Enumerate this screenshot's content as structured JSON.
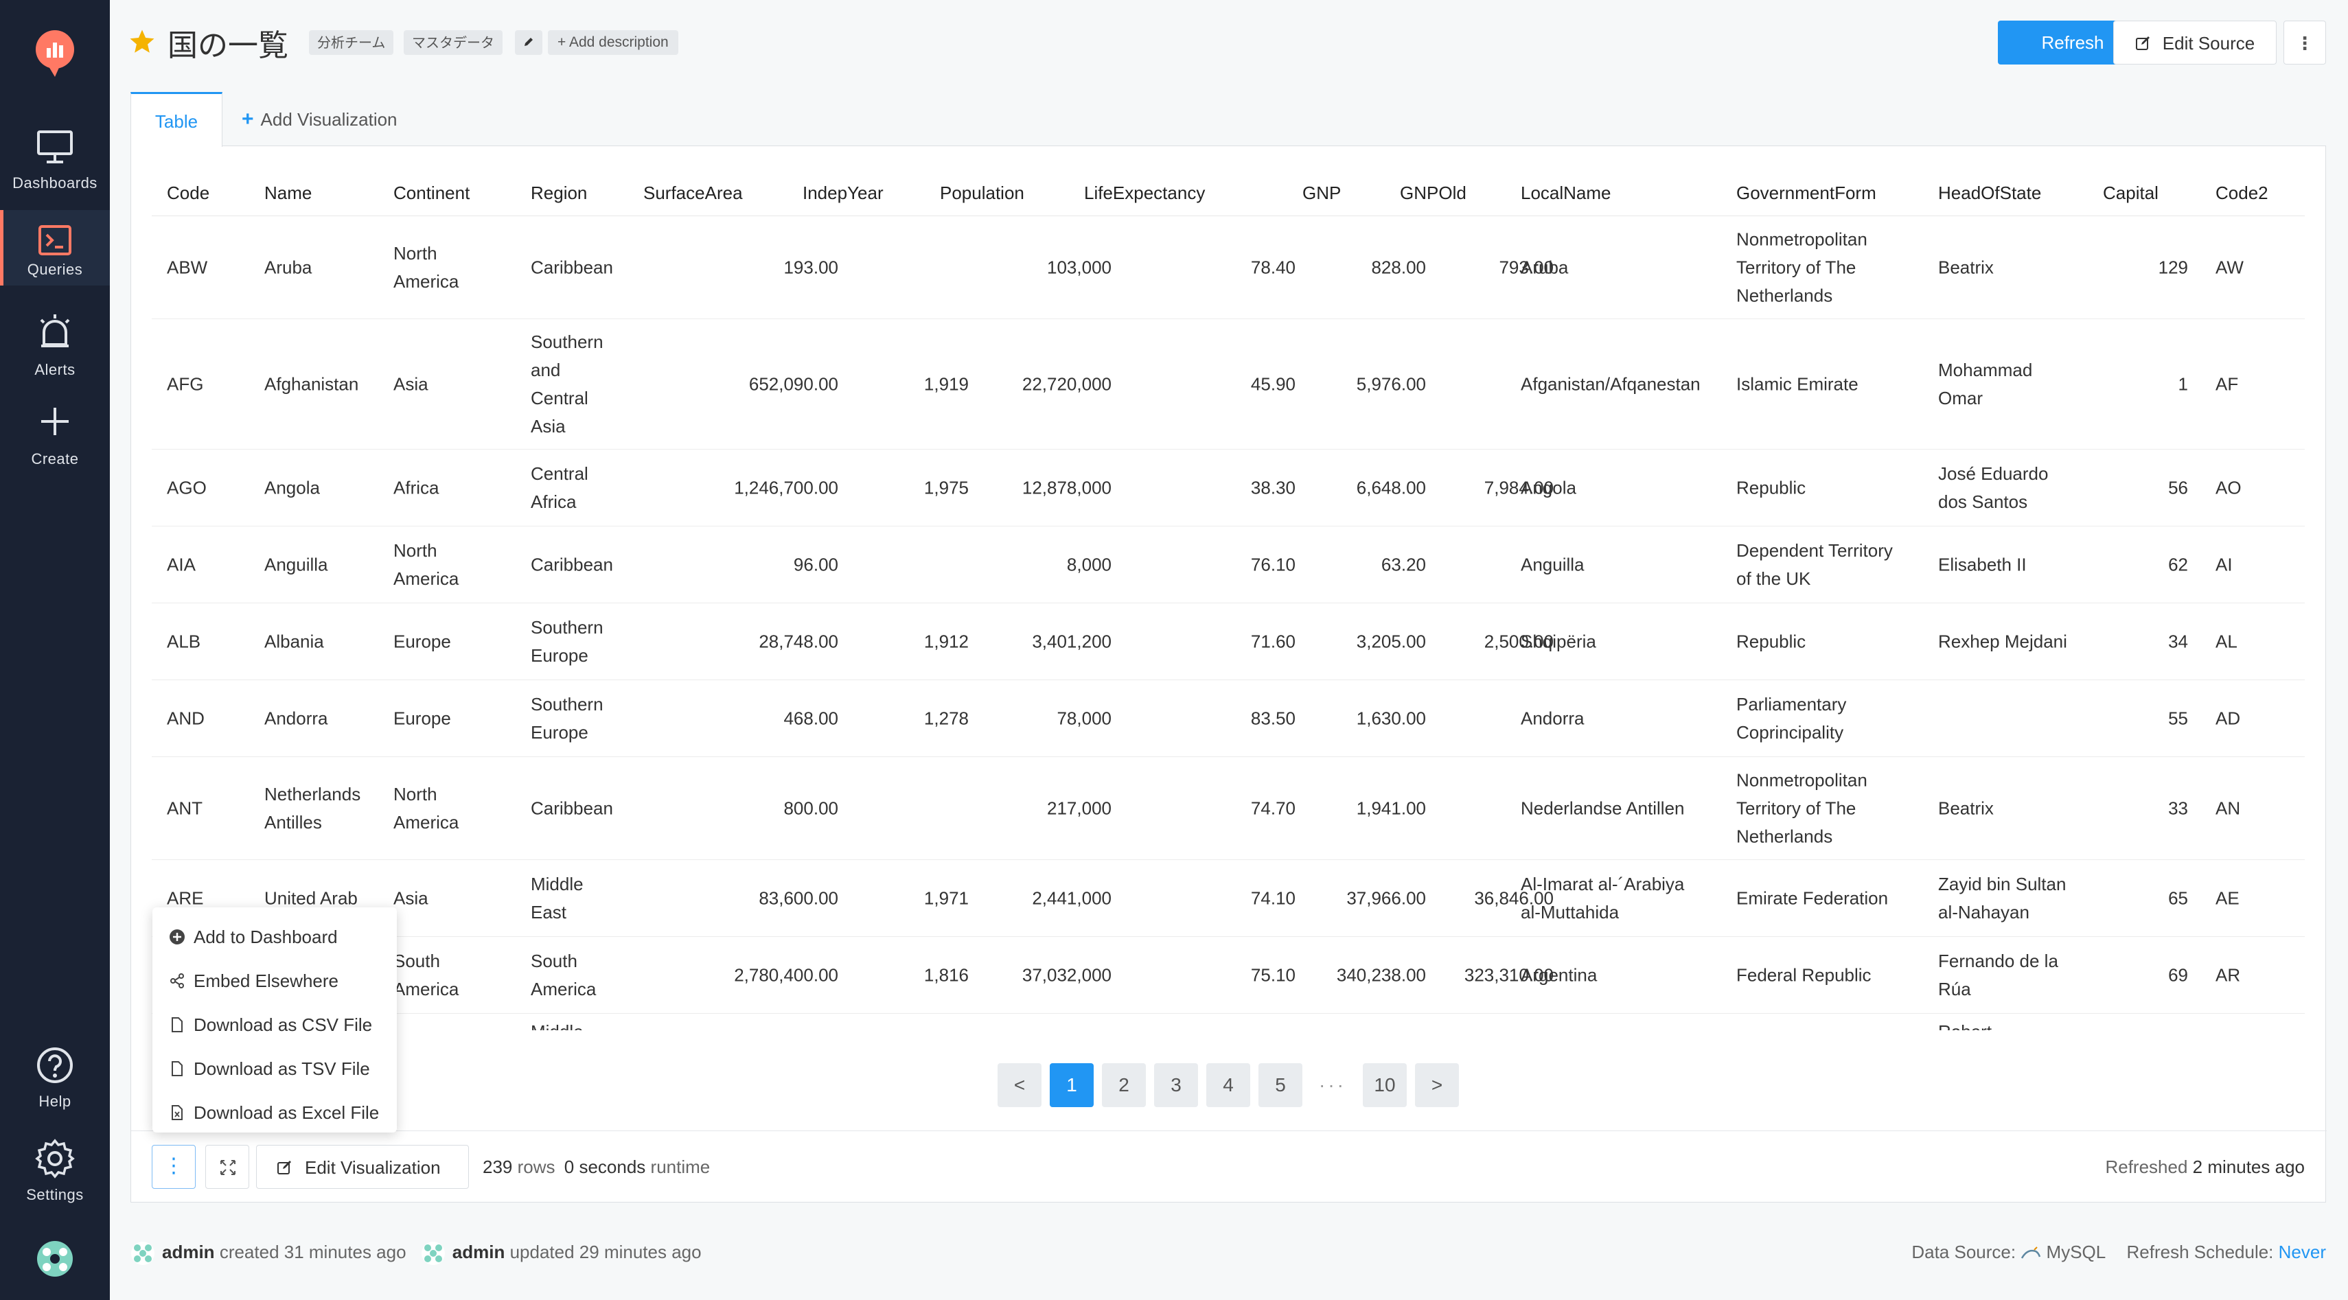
{
  "sidebar": {
    "items": [
      {
        "label": "Dashboards",
        "icon": "monitor-icon"
      },
      {
        "label": "Queries",
        "icon": "terminal-icon"
      },
      {
        "label": "Alerts",
        "icon": "alarm-icon"
      },
      {
        "label": "Create",
        "icon": "plus-icon"
      },
      {
        "label": "Help",
        "icon": "help-icon"
      },
      {
        "label": "Settings",
        "icon": "gear-icon"
      }
    ]
  },
  "header": {
    "title": "国の一覧",
    "tags": [
      "分析チーム",
      "マスタデータ"
    ],
    "add_description": "+ Add description",
    "refresh_label": "Refresh",
    "edit_source_label": "Edit Source",
    "more_label": "⋮"
  },
  "tabs": {
    "table_label": "Table",
    "add_visualization_label": "Add Visualization"
  },
  "table": {
    "columns": [
      "Code",
      "Name",
      "Continent",
      "Region",
      "SurfaceArea",
      "IndepYear",
      "Population",
      "LifeExpectancy",
      "GNP",
      "GNPOld",
      "LocalName",
      "GovernmentForm",
      "HeadOfState",
      "Capital",
      "Code2"
    ],
    "rows": [
      {
        "code": "ABW",
        "name": "Aruba",
        "continent": "North\nAmerica",
        "region": "Caribbean",
        "surface": "193.00",
        "indep": "",
        "pop": "103,000",
        "life": "78.40",
        "gnp": "828.00",
        "gnpold": "793.00",
        "local": "Aruba",
        "gov": "Nonmetropolitan\nTerritory of The\nNetherlands",
        "head": "Beatrix",
        "capital": "129",
        "code2": "AW"
      },
      {
        "code": "AFG",
        "name": "Afghanistan",
        "continent": "Asia",
        "region": "Southern\nand\nCentral\nAsia",
        "surface": "652,090.00",
        "indep": "1,919",
        "pop": "22,720,000",
        "life": "45.90",
        "gnp": "5,976.00",
        "gnpold": "",
        "local": "Afganistan/Afqanestan",
        "gov": "Islamic Emirate",
        "head": "Mohammad\nOmar",
        "capital": "1",
        "code2": "AF"
      },
      {
        "code": "AGO",
        "name": "Angola",
        "continent": "Africa",
        "region": "Central\nAfrica",
        "surface": "1,246,700.00",
        "indep": "1,975",
        "pop": "12,878,000",
        "life": "38.30",
        "gnp": "6,648.00",
        "gnpold": "7,984.00",
        "local": "Angola",
        "gov": "Republic",
        "head": "José Eduardo\ndos Santos",
        "capital": "56",
        "code2": "AO"
      },
      {
        "code": "AIA",
        "name": "Anguilla",
        "continent": "North\nAmerica",
        "region": "Caribbean",
        "surface": "96.00",
        "indep": "",
        "pop": "8,000",
        "life": "76.10",
        "gnp": "63.20",
        "gnpold": "",
        "local": "Anguilla",
        "gov": "Dependent Territory\nof the UK",
        "head": "Elisabeth II",
        "capital": "62",
        "code2": "AI"
      },
      {
        "code": "ALB",
        "name": "Albania",
        "continent": "Europe",
        "region": "Southern\nEurope",
        "surface": "28,748.00",
        "indep": "1,912",
        "pop": "3,401,200",
        "life": "71.60",
        "gnp": "3,205.00",
        "gnpold": "2,500.00",
        "local": "Shqipëria",
        "gov": "Republic",
        "head": "Rexhep Mejdani",
        "capital": "34",
        "code2": "AL"
      },
      {
        "code": "AND",
        "name": "Andorra",
        "continent": "Europe",
        "region": "Southern\nEurope",
        "surface": "468.00",
        "indep": "1,278",
        "pop": "78,000",
        "life": "83.50",
        "gnp": "1,630.00",
        "gnpold": "",
        "local": "Andorra",
        "gov": "Parliamentary\nCoprincipality",
        "head": "",
        "capital": "55",
        "code2": "AD"
      },
      {
        "code": "ANT",
        "name": "Netherlands\nAntilles",
        "continent": "North\nAmerica",
        "region": "Caribbean",
        "surface": "800.00",
        "indep": "",
        "pop": "217,000",
        "life": "74.70",
        "gnp": "1,941.00",
        "gnpold": "",
        "local": "Nederlandse Antillen",
        "gov": "Nonmetropolitan\nTerritory of The\nNetherlands",
        "head": "Beatrix",
        "capital": "33",
        "code2": "AN"
      },
      {
        "code": "ARE",
        "name": "United Arab",
        "continent": "Asia",
        "region": "Middle\nEast",
        "surface": "83,600.00",
        "indep": "1,971",
        "pop": "2,441,000",
        "life": "74.10",
        "gnp": "37,966.00",
        "gnpold": "36,846.00",
        "local": "Al-Imarat al-´Arabiya\nal-Muttahida",
        "gov": "Emirate Federation",
        "head": "Zayid bin Sultan\nal-Nahayan",
        "capital": "65",
        "code2": "AE"
      },
      {
        "code": "",
        "name": "",
        "continent": "South\nAmerica",
        "region": "South\nAmerica",
        "surface": "2,780,400.00",
        "indep": "1,816",
        "pop": "37,032,000",
        "life": "75.10",
        "gnp": "340,238.00",
        "gnpold": "323,310.00",
        "local": "Argentina",
        "gov": "Federal Republic",
        "head": "Fernando de la\nRúa",
        "capital": "69",
        "code2": "AR"
      }
    ],
    "partial_row": {
      "region": "Middle",
      "head": "Robert"
    }
  },
  "pagination": {
    "prev": "<",
    "pages": [
      "1",
      "2",
      "3",
      "4",
      "5"
    ],
    "dots": "···",
    "last": "10",
    "next": ">",
    "current": "1"
  },
  "footer_bar": {
    "edit_visualization_label": "Edit Visualization",
    "rows_count": "239",
    "rows_label": "rows",
    "runtime_value": "0 seconds",
    "runtime_label": "runtime",
    "refreshed_label": "Refreshed",
    "refreshed_value": "2 minutes ago"
  },
  "dropdown": {
    "items": [
      "Add to Dashboard",
      "Embed Elsewhere",
      "Download as CSV File",
      "Download as TSV File",
      "Download as Excel File"
    ]
  },
  "page_footer": {
    "created_user": "admin",
    "created_text": "created 31 minutes ago",
    "updated_user": "admin",
    "updated_text": "updated 29 minutes ago",
    "data_source_label": "Data Source:",
    "data_source_value": "MySQL",
    "refresh_schedule_label": "Refresh Schedule:",
    "refresh_schedule_value": "Never"
  },
  "colors": {
    "sidebar_bg": "#1a2233",
    "accent": "#2196f3",
    "active_marker": "#ff7964",
    "star": "#f5b301"
  }
}
